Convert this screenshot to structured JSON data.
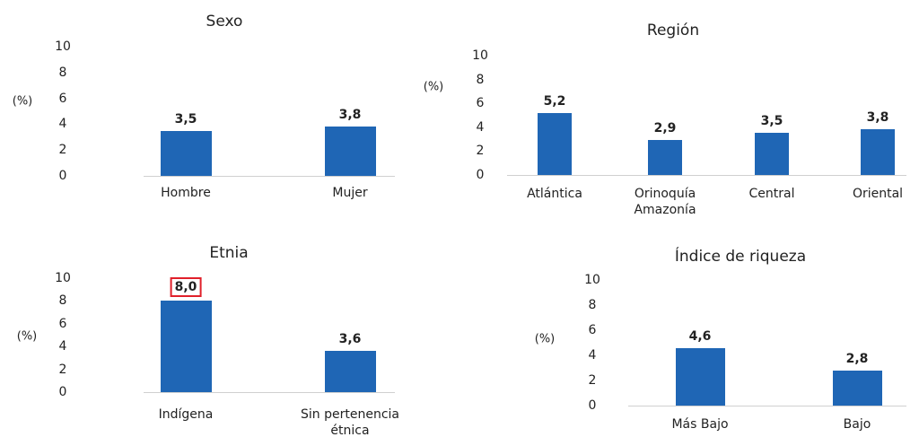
{
  "chart_data": [
    {
      "type": "bar",
      "title": "Sexo",
      "ylabel": "(%)",
      "categories": [
        "Hombre",
        "Mujer"
      ],
      "values": [
        3.5,
        3.8
      ],
      "value_labels": [
        "3,5",
        "3,8"
      ],
      "color": "#1f66b5",
      "ylim": [
        0,
        10
      ],
      "yticks": [
        0,
        2,
        4,
        6,
        8,
        10
      ]
    },
    {
      "type": "bar",
      "title": "Región",
      "ylabel": "(%)",
      "categories": [
        "Atlántica",
        "Orinoquía Amazonía",
        "Central",
        "Oriental"
      ],
      "values": [
        5.2,
        2.9,
        3.5,
        3.8
      ],
      "value_labels": [
        "5,2",
        "2,9",
        "3,5",
        "3,8"
      ],
      "color": "#1f66b5",
      "ylim": [
        0,
        10
      ],
      "yticks": [
        0,
        2,
        4,
        6,
        8,
        10
      ]
    },
    {
      "type": "bar",
      "title": "Etnia",
      "ylabel": "(%)",
      "categories": [
        "Indígena",
        "Sin pertenencia étnica"
      ],
      "values": [
        8.0,
        3.6
      ],
      "value_labels": [
        "8,0",
        "3,6"
      ],
      "color": "#1f66b5",
      "ylim": [
        0,
        10
      ],
      "yticks": [
        0,
        2,
        4,
        6,
        8,
        10
      ],
      "highlight": [
        0
      ]
    },
    {
      "type": "bar",
      "title": "Índice de riqueza",
      "ylabel": "(%)",
      "categories": [
        "Más Bajo",
        "Bajo"
      ],
      "values": [
        4.6,
        2.8
      ],
      "value_labels": [
        "4,6",
        "2,8"
      ],
      "color": "#1f66b5",
      "ylim": [
        0,
        10
      ],
      "yticks": [
        0,
        2,
        4,
        6,
        8,
        10
      ]
    }
  ]
}
